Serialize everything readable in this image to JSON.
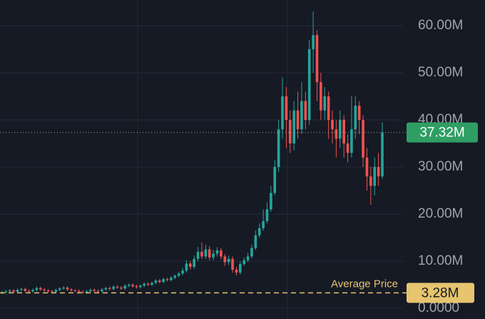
{
  "chart_data": {
    "type": "candlestick",
    "open": [
      3.3,
      3.4,
      3.6,
      3.8,
      3.5,
      3.9,
      4.1,
      3.7,
      3.6,
      3.9,
      4.3,
      4.0,
      3.8,
      3.6,
      3.5,
      3.9,
      4.2,
      4.4,
      4.0,
      3.8,
      3.7,
      3.5,
      3.4,
      3.6,
      3.9,
      3.7,
      3.6,
      4.0,
      4.3,
      4.1,
      4.6,
      4.4,
      4.2,
      4.8,
      5.0,
      4.7,
      4.5,
      4.8,
      5.2,
      5.0,
      5.4,
      5.9,
      5.6,
      6.2,
      6.0,
      6.5,
      6.9,
      7.4,
      8.0,
      9.5,
      8.8,
      10.5,
      12.0,
      11.0,
      12.5,
      10.8,
      11.6,
      12.3,
      11.0,
      9.8,
      10.5,
      8.2,
      7.6,
      9.4,
      10.2,
      11.0,
      12.8,
      15.5,
      17.0,
      18.5,
      21.0,
      24.5,
      30.0,
      38.0,
      45.0,
      40.0,
      35.0,
      42.0,
      38.0,
      44.0,
      40.0,
      55.0,
      58.0,
      48.0,
      42.0,
      45.0,
      40.0,
      38.0,
      36.0,
      40.0,
      35.0,
      33.0,
      38.0,
      43.0,
      40.0,
      32.0,
      28.0,
      26.0,
      30.0,
      28.0
    ],
    "high": [
      3.7,
      3.9,
      4.1,
      4.1,
      4.2,
      4.4,
      4.4,
      4.0,
      4.2,
      4.6,
      4.6,
      4.3,
      4.1,
      3.9,
      4.2,
      4.5,
      4.7,
      4.7,
      4.3,
      4.1,
      4.0,
      3.8,
      3.9,
      4.2,
      4.2,
      4.0,
      4.3,
      4.6,
      4.6,
      4.9,
      4.9,
      4.7,
      5.1,
      5.3,
      5.3,
      5.0,
      5.1,
      5.5,
      5.5,
      5.7,
      6.2,
      6.2,
      6.5,
      6.5,
      6.8,
      7.2,
      7.7,
      8.6,
      10.2,
      10.0,
      11.2,
      13.0,
      14.0,
      13.5,
      13.2,
      12.4,
      13.0,
      12.8,
      11.5,
      11.2,
      11.0,
      8.8,
      10.0,
      10.8,
      11.8,
      13.5,
      16.5,
      18.0,
      21.0,
      22.5,
      26.0,
      31.5,
      40.0,
      49.0,
      47.0,
      42.0,
      44.0,
      46.0,
      48.0,
      46.0,
      57.0,
      63.0,
      59.0,
      50.0,
      47.0,
      46.0,
      42.0,
      40.0,
      42.0,
      41.0,
      37.0,
      45.0,
      45.0,
      44.0,
      41.0,
      34.0,
      30.0,
      32.0,
      33.0,
      39.5
    ],
    "low": [
      3.0,
      3.1,
      3.3,
      3.2,
      3.2,
      3.6,
      3.4,
      3.3,
      3.3,
      3.6,
      3.7,
      3.5,
      3.3,
      3.2,
      3.2,
      3.6,
      3.9,
      3.7,
      3.5,
      3.4,
      3.2,
      3.1,
      3.1,
      3.3,
      3.4,
      3.3,
      3.3,
      3.7,
      3.8,
      3.8,
      4.1,
      3.9,
      3.9,
      4.5,
      4.4,
      4.2,
      4.2,
      4.5,
      4.7,
      4.7,
      5.1,
      5.3,
      5.3,
      5.7,
      5.7,
      6.2,
      6.6,
      7.0,
      7.6,
      8.2,
      8.4,
      10.0,
      10.5,
      10.5,
      10.2,
      10.2,
      11.0,
      10.4,
      9.0,
      9.2,
      7.6,
      7.0,
      7.2,
      9.0,
      9.8,
      10.6,
      12.4,
      15.0,
      16.5,
      18.0,
      20.5,
      24.0,
      29.0,
      36.0,
      34.0,
      33.0,
      33.5,
      36.0,
      37.0,
      38.0,
      39.0,
      50.0,
      44.0,
      40.0,
      40.0,
      36.0,
      35.0,
      32.0,
      34.0,
      32.0,
      31.0,
      32.0,
      36.0,
      37.0,
      30.0,
      25.0,
      22.0,
      24.0,
      26.0,
      27.5
    ],
    "close": [
      3.4,
      3.6,
      3.8,
      3.5,
      3.9,
      4.1,
      3.7,
      3.6,
      3.9,
      4.3,
      4.0,
      3.8,
      3.6,
      3.5,
      3.9,
      4.2,
      4.4,
      4.0,
      3.8,
      3.7,
      3.5,
      3.4,
      3.6,
      3.9,
      3.7,
      3.6,
      4.0,
      4.3,
      4.1,
      4.6,
      4.4,
      4.2,
      4.8,
      5.0,
      4.7,
      4.5,
      4.8,
      5.2,
      5.0,
      5.4,
      5.9,
      5.6,
      6.2,
      6.0,
      6.5,
      6.9,
      7.4,
      8.0,
      9.5,
      8.8,
      10.5,
      12.0,
      11.0,
      12.5,
      10.8,
      11.6,
      12.3,
      11.0,
      9.8,
      10.5,
      8.2,
      7.6,
      9.4,
      10.2,
      11.0,
      12.8,
      15.5,
      17.0,
      18.5,
      21.0,
      24.5,
      30.0,
      38.0,
      45.0,
      40.0,
      35.0,
      42.0,
      38.0,
      44.0,
      40.0,
      55.0,
      58.0,
      48.0,
      42.0,
      45.0,
      40.0,
      38.0,
      36.0,
      40.0,
      35.0,
      33.0,
      38.0,
      43.0,
      40.0,
      32.0,
      28.0,
      26.0,
      30.0,
      28.0,
      37.32
    ],
    "up_color": "#26a69a",
    "down_color": "#ef5350",
    "ylim": [
      -2.27,
      65.45
    ],
    "yticks": [
      {
        "value": 0,
        "label": "0.0000"
      },
      {
        "value": 10,
        "label": "10.00M"
      },
      {
        "value": 20,
        "label": "20.00M"
      },
      {
        "value": 30,
        "label": "30.00M"
      },
      {
        "value": 40,
        "label": "40.00M"
      },
      {
        "value": 50,
        "label": "50.00M"
      },
      {
        "value": 60,
        "label": "60.00M"
      }
    ],
    "grid": true,
    "last_price": {
      "value": 37.32,
      "label": "37.32M",
      "color": "#2f9e63"
    },
    "average_price": {
      "name": "Average Price",
      "value": 3.28,
      "label": "3.28M",
      "color": "#e7c46e"
    }
  }
}
